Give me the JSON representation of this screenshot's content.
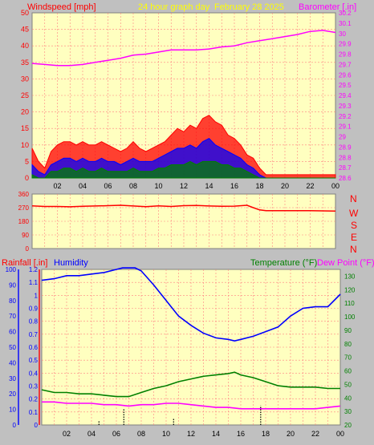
{
  "header": {
    "wind_label": "Windspeed [mph]",
    "title": "24 hour graph day",
    "date": "February 28 2025",
    "baro_label": "Barometer [.in]"
  },
  "colors": {
    "background": "#c0c0c0",
    "plot_bg": "#ffffc0",
    "grid": "#ff8080",
    "wind_max": "#ff0000",
    "wind_avg": "#0000ff",
    "wind_min": "#008000",
    "baro": "#ff00ff",
    "direction": "#ff0000",
    "humidity": "#0000ff",
    "temperature": "#008000",
    "dewpoint": "#ff00ff",
    "rain": "#000000"
  },
  "chart_data": [
    {
      "type": "line",
      "name": "wind-baro",
      "xlabel": "",
      "x_ticks": [
        "02",
        "04",
        "06",
        "08",
        "10",
        "12",
        "14",
        "16",
        "18",
        "20",
        "22",
        "00"
      ],
      "x_range_hours": [
        0,
        24
      ],
      "ylabel": "Windspeed [mph]",
      "ylim": [
        0,
        50
      ],
      "y_ticks": [
        0,
        5,
        10,
        15,
        20,
        25,
        30,
        35,
        40,
        45,
        50
      ],
      "y2label": "Barometer [.in]",
      "y2lim": [
        28.6,
        30.2
      ],
      "y2_ticks": [
        "28.6",
        "28.7",
        "28.8",
        "28.9",
        "29",
        "29.1",
        "29.2",
        "29.3",
        "29.4",
        "29.5",
        "29.6",
        "29.7",
        "29.8",
        "29.9",
        "30",
        "30.1",
        "30.2"
      ],
      "grid": true,
      "series": [
        {
          "key": "max",
          "hours": [
            0,
            0.5,
            1,
            1.5,
            2,
            2.5,
            3,
            3.5,
            4,
            4.5,
            5,
            5.5,
            6,
            6.5,
            7,
            7.5,
            8,
            8.5,
            9,
            9.5,
            10,
            10.5,
            11,
            11.5,
            12,
            12.5,
            13,
            13.5,
            14,
            14.5,
            15,
            15.5,
            16,
            16.5,
            17,
            17.5,
            18,
            18.5,
            19,
            20,
            21,
            22,
            23,
            24
          ],
          "values": [
            9,
            5,
            3,
            8,
            10,
            11,
            11,
            10,
            11,
            10,
            10,
            11,
            10,
            9,
            8,
            9,
            11,
            9,
            8,
            9,
            10,
            11,
            13,
            15,
            14,
            16,
            15,
            18,
            19,
            17,
            16,
            13,
            12,
            10,
            7,
            6,
            3,
            1,
            1,
            1,
            1,
            1,
            1,
            1
          ]
        },
        {
          "key": "avg",
          "hours": [
            0,
            0.5,
            1,
            1.5,
            2,
            2.5,
            3,
            3.5,
            4,
            4.5,
            5,
            5.5,
            6,
            6.5,
            7,
            7.5,
            8,
            8.5,
            9,
            9.5,
            10,
            10.5,
            11,
            11.5,
            12,
            12.5,
            13,
            13.5,
            14,
            14.5,
            15,
            15.5,
            16,
            16.5,
            17,
            17.5,
            18,
            18.5,
            19,
            20,
            21,
            22,
            23,
            24
          ],
          "values": [
            4,
            2,
            1,
            4,
            5,
            6,
            6,
            5,
            6,
            5,
            5,
            6,
            5,
            5,
            4,
            5,
            6,
            5,
            5,
            5,
            6,
            7,
            8,
            9,
            9,
            10,
            9,
            11,
            12,
            10,
            9,
            8,
            7,
            6,
            4,
            3,
            1,
            0,
            0,
            0,
            0,
            0,
            0,
            0
          ]
        },
        {
          "key": "min",
          "hours": [
            0,
            0.5,
            1,
            1.5,
            2,
            2.5,
            3,
            3.5,
            4,
            4.5,
            5,
            5.5,
            6,
            6.5,
            7,
            7.5,
            8,
            8.5,
            9,
            9.5,
            10,
            10.5,
            11,
            11.5,
            12,
            12.5,
            13,
            13.5,
            14,
            14.5,
            15,
            15.5,
            16,
            16.5,
            17,
            17.5,
            18,
            18.5,
            19,
            20,
            21,
            22,
            23,
            24
          ],
          "values": [
            1,
            0,
            0,
            2,
            2,
            3,
            3,
            2,
            3,
            2,
            2,
            3,
            2,
            2,
            2,
            2,
            3,
            2,
            2,
            2,
            3,
            3,
            4,
            4,
            4,
            5,
            4,
            5,
            5,
            5,
            4,
            4,
            3,
            3,
            2,
            1,
            0,
            0,
            0,
            0,
            0,
            0,
            0,
            0
          ]
        },
        {
          "key": "barometer",
          "axis": "right",
          "hours": [
            0,
            1,
            2,
            3,
            4,
            5,
            6,
            7,
            8,
            9,
            10,
            11,
            12,
            13,
            14,
            15,
            16,
            17,
            18,
            19,
            20,
            21,
            22,
            23,
            24
          ],
          "values": [
            29.71,
            29.7,
            29.69,
            29.69,
            29.7,
            29.72,
            29.74,
            29.76,
            29.79,
            29.8,
            29.82,
            29.84,
            29.84,
            29.84,
            29.85,
            29.87,
            29.88,
            29.91,
            29.93,
            29.95,
            29.97,
            29.99,
            30.02,
            30.03,
            30.01
          ]
        }
      ]
    },
    {
      "type": "line",
      "name": "wind-direction",
      "ylim": [
        0,
        360
      ],
      "y_ticks": [
        "0",
        "90",
        "180",
        "270",
        "360"
      ],
      "compass_labels": [
        "N",
        "W",
        "S",
        "E",
        "N"
      ],
      "grid": true,
      "series": [
        {
          "key": "direction",
          "hours": [
            0,
            1,
            2,
            3,
            4,
            5,
            6,
            7,
            8,
            9,
            10,
            11,
            12,
            13,
            14,
            15,
            16,
            17,
            17.5,
            18,
            18.5,
            19,
            20,
            21,
            22,
            23,
            24
          ],
          "values": [
            282,
            278,
            278,
            276,
            279,
            281,
            283,
            286,
            281,
            277,
            282,
            278,
            283,
            285,
            281,
            279,
            280,
            286,
            270,
            255,
            250,
            250,
            250,
            250,
            250,
            249,
            248
          ]
        }
      ]
    },
    {
      "type": "line",
      "name": "humidity-temp",
      "header_left_rain": "Rainfall [.in]",
      "header_left_humidity": "Humidity",
      "header_right_temp": "Temperature (°F)",
      "header_right_dew": "Dew Point (°F)",
      "humidity_ticks": [
        "0",
        "10",
        "20",
        "30",
        "40",
        "50",
        "60",
        "70",
        "80",
        "90",
        "100"
      ],
      "humidity_lim": [
        0,
        100
      ],
      "rain_ticks": [
        "0",
        "0.1",
        "0.2",
        "0.3",
        "0.4",
        "0.5",
        "0.6",
        "0.7",
        "0.8",
        "0.9",
        "1",
        "1.1",
        "1.2"
      ],
      "rain_lim": [
        0,
        1.2
      ],
      "temp_ticks": [
        "20",
        "30",
        "40",
        "50",
        "60",
        "70",
        "80",
        "90",
        "100",
        "110",
        "120",
        "130"
      ],
      "temp_lim": [
        20,
        135
      ],
      "grid": true,
      "series": [
        {
          "key": "humidity",
          "axis": "humidity",
          "hours": [
            0,
            1,
            2,
            3,
            4,
            5,
            6,
            6.5,
            7,
            7.5,
            8,
            9,
            10,
            11,
            12,
            13,
            14,
            15,
            15.5,
            16,
            17,
            18,
            19,
            20,
            21,
            22,
            23,
            24
          ],
          "values": [
            93,
            94,
            96,
            96,
            97,
            98,
            100,
            101,
            101,
            101,
            99,
            90,
            80,
            70,
            64,
            59,
            56,
            55,
            54,
            55,
            57,
            60,
            63,
            70,
            75,
            76,
            76,
            84
          ]
        },
        {
          "key": "temperature",
          "axis": "temperature",
          "hours": [
            0,
            1,
            2,
            3,
            4,
            5,
            6,
            7,
            8,
            9,
            10,
            11,
            12,
            13,
            14,
            15,
            15.5,
            16,
            17,
            18,
            19,
            20,
            21,
            22,
            23,
            24
          ],
          "values": [
            46,
            44,
            44,
            43,
            43,
            42,
            41,
            41,
            44,
            47,
            49,
            52,
            54,
            56,
            57,
            58,
            59,
            57,
            55,
            52,
            49,
            48,
            48,
            48,
            47,
            47
          ]
        },
        {
          "key": "dewpoint",
          "axis": "temperature",
          "hours": [
            0,
            1,
            2,
            3,
            4,
            5,
            6,
            7,
            8,
            9,
            10,
            11,
            12,
            13,
            14,
            15,
            16,
            17,
            18,
            19,
            20,
            21,
            22,
            23,
            24
          ],
          "values": [
            37,
            37,
            36,
            36,
            36,
            35,
            35,
            34,
            35,
            35,
            36,
            36,
            35,
            34,
            33,
            33,
            32,
            32,
            32,
            32,
            32,
            32,
            32,
            33,
            34
          ]
        },
        {
          "key": "rain_marks",
          "axis": "rain",
          "hours": [
            4.6,
            6.6,
            10.6,
            17.6
          ],
          "values": [
            0.03,
            0.13,
            0.05,
            0.15
          ]
        }
      ]
    }
  ],
  "bottom_x_ticks": [
    "02",
    "04",
    "06",
    "08",
    "10",
    "12",
    "14",
    "16",
    "18",
    "20",
    "22",
    "00"
  ]
}
